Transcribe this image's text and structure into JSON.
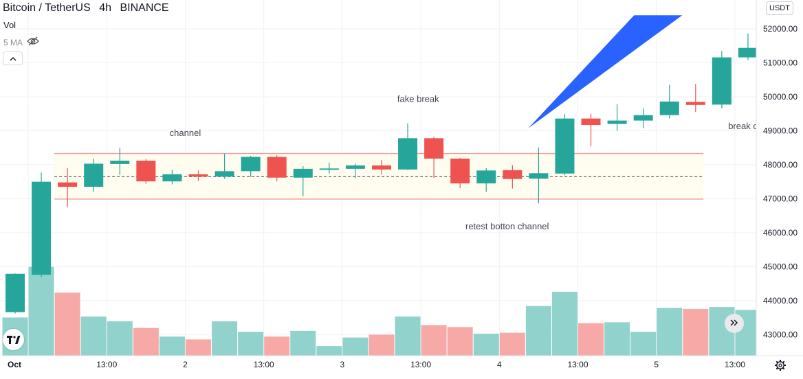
{
  "header": {
    "symbol": "Bitcoin / TetherUS",
    "interval": "4h",
    "exchange": "BINANCE"
  },
  "volume_label": "Vol",
  "ma_label": "5 MA",
  "currency_button": "USDT",
  "annotations": [
    {
      "text": "channel",
      "x": 6.5,
      "y": 48850
    },
    {
      "text": "fake break",
      "x": 15.4,
      "y": 49850
    },
    {
      "text": "retest botton channel",
      "x": 18.8,
      "y": 46100
    },
    {
      "text": "break ch",
      "x": 27.9,
      "y": 49050
    }
  ],
  "icons": {
    "eye": "eye-crossed-icon",
    "collapse": "chevron-up-icon",
    "logo": "tradingview-logo-icon",
    "scroll": "double-chevron-right-icon",
    "settings": "gear-icon"
  },
  "colors": {
    "up": "#26a69a",
    "down": "#ef5350",
    "up_volume": "#92d2cc",
    "down_volume": "#f7a9a7",
    "channel_line": "#f19b94",
    "channel_fill": "#fffdf0",
    "arrow": "#2962ff"
  },
  "chart_data": {
    "type": "candlestick",
    "title": "Bitcoin / TetherUS 4h BINANCE",
    "ylim": [
      42700,
      52200
    ],
    "y_ticks": [
      "52000.00",
      "51000.00",
      "50000.00",
      "49000.00",
      "48000.00",
      "47000.00",
      "46000.00",
      "45000.00",
      "44000.00",
      "43000.00"
    ],
    "y_tick_values": [
      52000,
      51000,
      50000,
      49000,
      48000,
      47000,
      46000,
      45000,
      44000,
      43000
    ],
    "x_ticks": [
      {
        "label": "Oct",
        "x": 0.5
      },
      {
        "label": "13:00",
        "x": 3.5
      },
      {
        "label": "2",
        "x": 6.5
      },
      {
        "label": "13:00",
        "x": 9.5
      },
      {
        "label": "3",
        "x": 12.5
      },
      {
        "label": "13:00",
        "x": 15.5
      },
      {
        "label": "4",
        "x": 18.5
      },
      {
        "label": "13:00",
        "x": 21.5
      },
      {
        "label": "5",
        "x": 24.5
      },
      {
        "label": "13:00",
        "x": 27.5
      }
    ],
    "candles": [
      {
        "o": 43660,
        "h": 44800,
        "l": 43620,
        "c": 44790,
        "v": 4000
      },
      {
        "o": 44760,
        "h": 47770,
        "l": 44700,
        "c": 47500,
        "v": 9300
      },
      {
        "o": 47480,
        "h": 47900,
        "l": 46750,
        "c": 47350,
        "v": 6600
      },
      {
        "o": 47350,
        "h": 48180,
        "l": 47200,
        "c": 48030,
        "v": 4100
      },
      {
        "o": 48020,
        "h": 48500,
        "l": 47700,
        "c": 48120,
        "v": 3600
      },
      {
        "o": 48120,
        "h": 48170,
        "l": 47440,
        "c": 47510,
        "v": 2900
      },
      {
        "o": 47510,
        "h": 47850,
        "l": 47420,
        "c": 47720,
        "v": 2000
      },
      {
        "o": 47720,
        "h": 47830,
        "l": 47520,
        "c": 47650,
        "v": 1700
      },
      {
        "o": 47650,
        "h": 48330,
        "l": 47590,
        "c": 47810,
        "v": 3600
      },
      {
        "o": 47810,
        "h": 48260,
        "l": 47640,
        "c": 48230,
        "v": 2500
      },
      {
        "o": 48230,
        "h": 48280,
        "l": 47510,
        "c": 47620,
        "v": 2000
      },
      {
        "o": 47620,
        "h": 47960,
        "l": 47070,
        "c": 47880,
        "v": 2600
      },
      {
        "o": 47870,
        "h": 48060,
        "l": 47740,
        "c": 47890,
        "v": 1000
      },
      {
        "o": 47880,
        "h": 48030,
        "l": 47600,
        "c": 47980,
        "v": 1900
      },
      {
        "o": 47980,
        "h": 48140,
        "l": 47710,
        "c": 47860,
        "v": 2200
      },
      {
        "o": 47860,
        "h": 49220,
        "l": 47840,
        "c": 48780,
        "v": 4100
      },
      {
        "o": 48780,
        "h": 48820,
        "l": 47610,
        "c": 48180,
        "v": 3200
      },
      {
        "o": 48180,
        "h": 48200,
        "l": 47310,
        "c": 47450,
        "v": 3000
      },
      {
        "o": 47450,
        "h": 47900,
        "l": 47200,
        "c": 47830,
        "v": 2300
      },
      {
        "o": 47840,
        "h": 47990,
        "l": 47300,
        "c": 47580,
        "v": 2400
      },
      {
        "o": 47590,
        "h": 48510,
        "l": 46860,
        "c": 47750,
        "v": 5200
      },
      {
        "o": 47740,
        "h": 49490,
        "l": 47690,
        "c": 49360,
        "v": 6700
      },
      {
        "o": 49360,
        "h": 49500,
        "l": 48540,
        "c": 49170,
        "v": 3400
      },
      {
        "o": 49200,
        "h": 49780,
        "l": 49000,
        "c": 49300,
        "v": 3500
      },
      {
        "o": 49300,
        "h": 49660,
        "l": 49070,
        "c": 49460,
        "v": 2500
      },
      {
        "o": 49460,
        "h": 50350,
        "l": 49360,
        "c": 49860,
        "v": 5000
      },
      {
        "o": 49850,
        "h": 50380,
        "l": 49550,
        "c": 49760,
        "v": 4900
      },
      {
        "o": 49770,
        "h": 51350,
        "l": 49660,
        "c": 51160,
        "v": 5100
      },
      {
        "o": 51160,
        "h": 51860,
        "l": 51080,
        "c": 51440,
        "v": 4800
      }
    ],
    "channel": {
      "upper": 48330,
      "lower": 46990,
      "mid": 47650,
      "x_start": 1.5,
      "x_end": 26.3
    },
    "annotation_arrow": {
      "from": {
        "x": 19.6,
        "y": 49070
      },
      "to": {
        "x": 24.7,
        "y": 52400
      }
    }
  }
}
